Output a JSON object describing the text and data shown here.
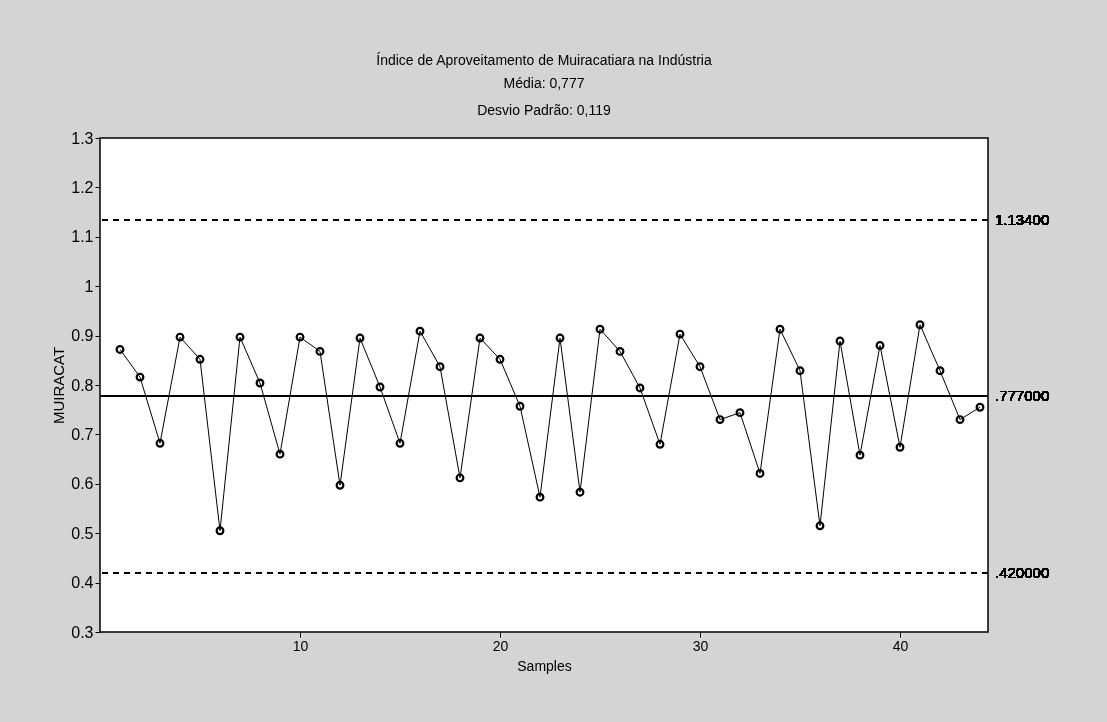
{
  "chart_data": {
    "type": "line",
    "title": "Índice de Aproveitamento de Muiracatiara na Indústria",
    "subtitle": "Média: 0,777\nDesvio Padrão: 0,119",
    "xlabel": "Samples",
    "ylabel": "MUIRACAT",
    "x": [
      1,
      2,
      3,
      4,
      5,
      6,
      7,
      8,
      9,
      10,
      11,
      12,
      13,
      14,
      15,
      16,
      17,
      18,
      19,
      20,
      21,
      22,
      23,
      24,
      25,
      26,
      27,
      28,
      29,
      30,
      31,
      32,
      33,
      34,
      35,
      36,
      37,
      38,
      39,
      40,
      41,
      42,
      43,
      44
    ],
    "series": [
      {
        "color": "#000000",
        "values": [
          0.872,
          0.816,
          0.682,
          0.897,
          0.852,
          0.505,
          0.897,
          0.804,
          0.66,
          0.897,
          0.868,
          0.597,
          0.895,
          0.796,
          0.682,
          0.909,
          0.837,
          0.612,
          0.895,
          0.852,
          0.757,
          0.573,
          0.895,
          0.583,
          0.913,
          0.868,
          0.794,
          0.68,
          0.903,
          0.837,
          0.73,
          0.744,
          0.621,
          0.913,
          0.829,
          0.515,
          0.889,
          0.658,
          0.88,
          0.674,
          0.922,
          0.829,
          0.73,
          0.755
        ]
      }
    ],
    "xlim": [
      0,
      44.4
    ],
    "xticks": [
      10,
      20,
      30,
      40
    ],
    "ylim": [
      0.3,
      1.3
    ],
    "yticks": [
      0.3,
      0.4,
      0.5,
      0.6,
      0.7,
      0.8,
      0.9,
      1,
      1.1,
      1.2,
      1.3
    ],
    "ref_lines": [
      {
        "axis": "y",
        "value": 1.134,
        "label": "1.13400",
        "line_style": "dashed",
        "color": "#000000"
      },
      {
        "axis": "y",
        "value": 0.777,
        "label": ".777000",
        "line_style": "solid",
        "color": "#000000"
      },
      {
        "axis": "y",
        "value": 0.42,
        "label": ".420000",
        "line_style": "dashed",
        "color": "#000000"
      }
    ],
    "marker": "circle",
    "line_style": "solid",
    "grid": false
  }
}
